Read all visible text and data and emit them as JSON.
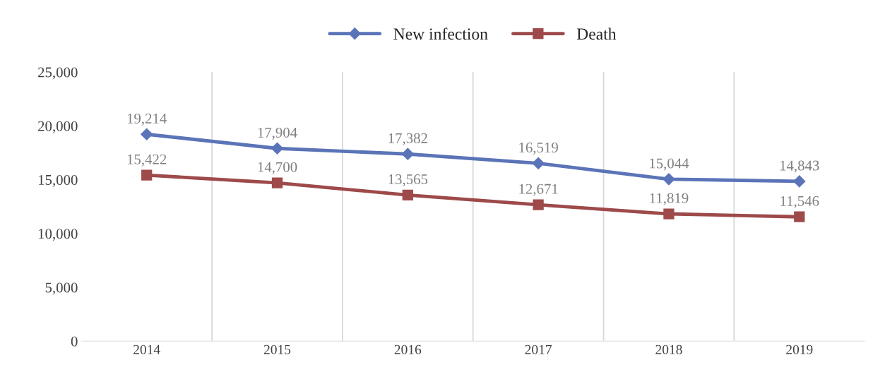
{
  "chart_data": {
    "type": "line",
    "categories": [
      "2014",
      "2015",
      "2016",
      "2017",
      "2018",
      "2019"
    ],
    "series": [
      {
        "name": "New infection",
        "color": "#5b74b8",
        "values": [
          19214,
          17904,
          17382,
          16519,
          15044,
          14843
        ],
        "value_labels": [
          "19,214",
          "17,904",
          "17,382",
          "16,519",
          "15,044",
          "14,843"
        ],
        "marker": "diamond"
      },
      {
        "name": "Death",
        "color": "#9e4a4a",
        "values": [
          15422,
          14700,
          13565,
          12671,
          11819,
          11546
        ],
        "value_labels": [
          "15,422",
          "14,700",
          "13,565",
          "12,671",
          "11,819",
          "11,546"
        ],
        "marker": "square"
      }
    ],
    "ylim": [
      0,
      25000
    ],
    "yticks": [
      {
        "value": 0,
        "label": "0"
      },
      {
        "value": 5000,
        "label": "5,000"
      },
      {
        "value": 10000,
        "label": "10,000"
      },
      {
        "value": 15000,
        "label": "15,000"
      },
      {
        "value": 20000,
        "label": "20,000"
      },
      {
        "value": 25000,
        "label": "25,000"
      }
    ],
    "grid": "x",
    "legend": "top",
    "line_style": "solid"
  }
}
